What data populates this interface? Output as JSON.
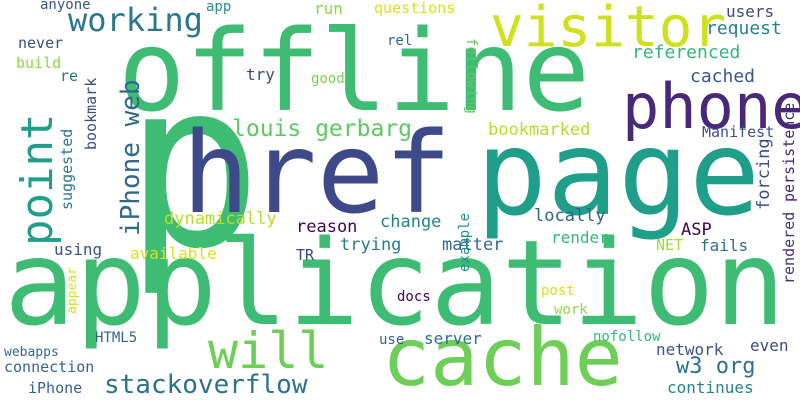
{
  "words": {
    "p": {
      "text": "p",
      "color": "#3fbc73"
    },
    "offline": {
      "text": "offline",
      "color": "#3fbc73"
    },
    "application": {
      "text": "application",
      "color": "#3fbc73"
    },
    "href": {
      "text": "href",
      "color": "#3e4989"
    },
    "page": {
      "text": "page",
      "color": "#1f9e89"
    },
    "cache": {
      "text": "cache",
      "color": "#6ece58"
    },
    "visitor": {
      "text": "visitor",
      "color": "#cde11d"
    },
    "phone": {
      "text": "phone",
      "color": "#482878"
    },
    "will": {
      "text": "will",
      "color": "#6ece58"
    },
    "point": {
      "text": "point",
      "color": "#1f9e89"
    },
    "working": {
      "text": "working",
      "color": "#2a788e"
    },
    "iphone_web": {
      "text": "iPhone web",
      "color": "#31688e"
    },
    "stackoverflow": {
      "text": "stackoverflow",
      "color": "#2c728e"
    },
    "louis_gerbarg": {
      "text": "louis gerbarg",
      "color": "#5ec962"
    },
    "w3_org": {
      "text": "w3 org",
      "color": "#2c728e"
    },
    "bookmarked": {
      "text": "bookmarked",
      "color": "#b5de2b"
    },
    "referenced": {
      "text": "referenced",
      "color": "#35b779"
    },
    "request": {
      "text": "request",
      "color": "#26828e"
    },
    "questions": {
      "text": "questions",
      "color": "#d8e219"
    },
    "users": {
      "text": "users",
      "color": "#404688"
    },
    "cached": {
      "text": "cached",
      "color": "#39568c"
    },
    "manifest": {
      "text": "Manifest",
      "color": "#3b528b"
    },
    "persistence": {
      "text": "persistence",
      "color": "#482475"
    },
    "rendered": {
      "text": "rendered",
      "color": "#46327e"
    },
    "forcing": {
      "text": "forcing",
      "color": "#3e4989"
    },
    "dynamically": {
      "text": "dynamically",
      "color": "#b5de2b"
    },
    "reason": {
      "text": "reason",
      "color": "#440154"
    },
    "change": {
      "text": "change",
      "color": "#26828e"
    },
    "locally": {
      "text": "locally",
      "color": "#33638d"
    },
    "trying": {
      "text": "trying",
      "color": "#287c8e"
    },
    "matter": {
      "text": "matter",
      "color": "#31688e"
    },
    "render": {
      "text": "render",
      "color": "#35b779"
    },
    "available": {
      "text": "available",
      "color": "#d8e219"
    },
    "using": {
      "text": "using",
      "color": "#3b528b"
    },
    "tr": {
      "text": "TR",
      "color": "#3e4989"
    },
    "asp": {
      "text": "ASP",
      "color": "#440154"
    },
    "net": {
      "text": "NET",
      "color": "#a2da37"
    },
    "fails": {
      "text": "fails",
      "color": "#2d708e"
    },
    "anyone": {
      "text": "anyone",
      "color": "#3b528b"
    },
    "app": {
      "text": "app",
      "color": "#21918c"
    },
    "run": {
      "text": "run",
      "color": "#90d743"
    },
    "never": {
      "text": "never",
      "color": "#3e4989"
    },
    "build": {
      "text": "build",
      "color": "#90d743"
    },
    "re": {
      "text": "re",
      "color": "#2c728e"
    },
    "rel": {
      "text": "rel",
      "color": "#33638d"
    },
    "try": {
      "text": "try",
      "color": "#3e4989"
    },
    "good": {
      "text": "good",
      "color": "#7ad151"
    },
    "following": {
      "text": "following",
      "color": "#5ec962"
    },
    "bookmark": {
      "text": "bookmark",
      "color": "#3e4989"
    },
    "suggested": {
      "text": "suggested",
      "color": "#2a788e"
    },
    "example": {
      "text": "example",
      "color": "#21918c"
    },
    "appear": {
      "text": "appear",
      "color": "#d8e219"
    },
    "docs": {
      "text": "docs",
      "color": "#440154"
    },
    "post": {
      "text": "post",
      "color": "#d8e219"
    },
    "work": {
      "text": "work",
      "color": "#90d743"
    },
    "html5": {
      "text": "HTML5",
      "color": "#33638d"
    },
    "use": {
      "text": "use",
      "color": "#33638d"
    },
    "server": {
      "text": "server",
      "color": "#2c728e"
    },
    "nofollow": {
      "text": "nofollow",
      "color": "#35b779"
    },
    "network": {
      "text": "network",
      "color": "#3b528b"
    },
    "even": {
      "text": "even",
      "color": "#3e4989"
    },
    "webapps": {
      "text": "webapps",
      "color": "#31688e"
    },
    "connection": {
      "text": "connection",
      "color": "#31688e"
    },
    "iphone": {
      "text": "iPhone",
      "color": "#33638d"
    },
    "continues": {
      "text": "continues",
      "color": "#26828e"
    }
  }
}
